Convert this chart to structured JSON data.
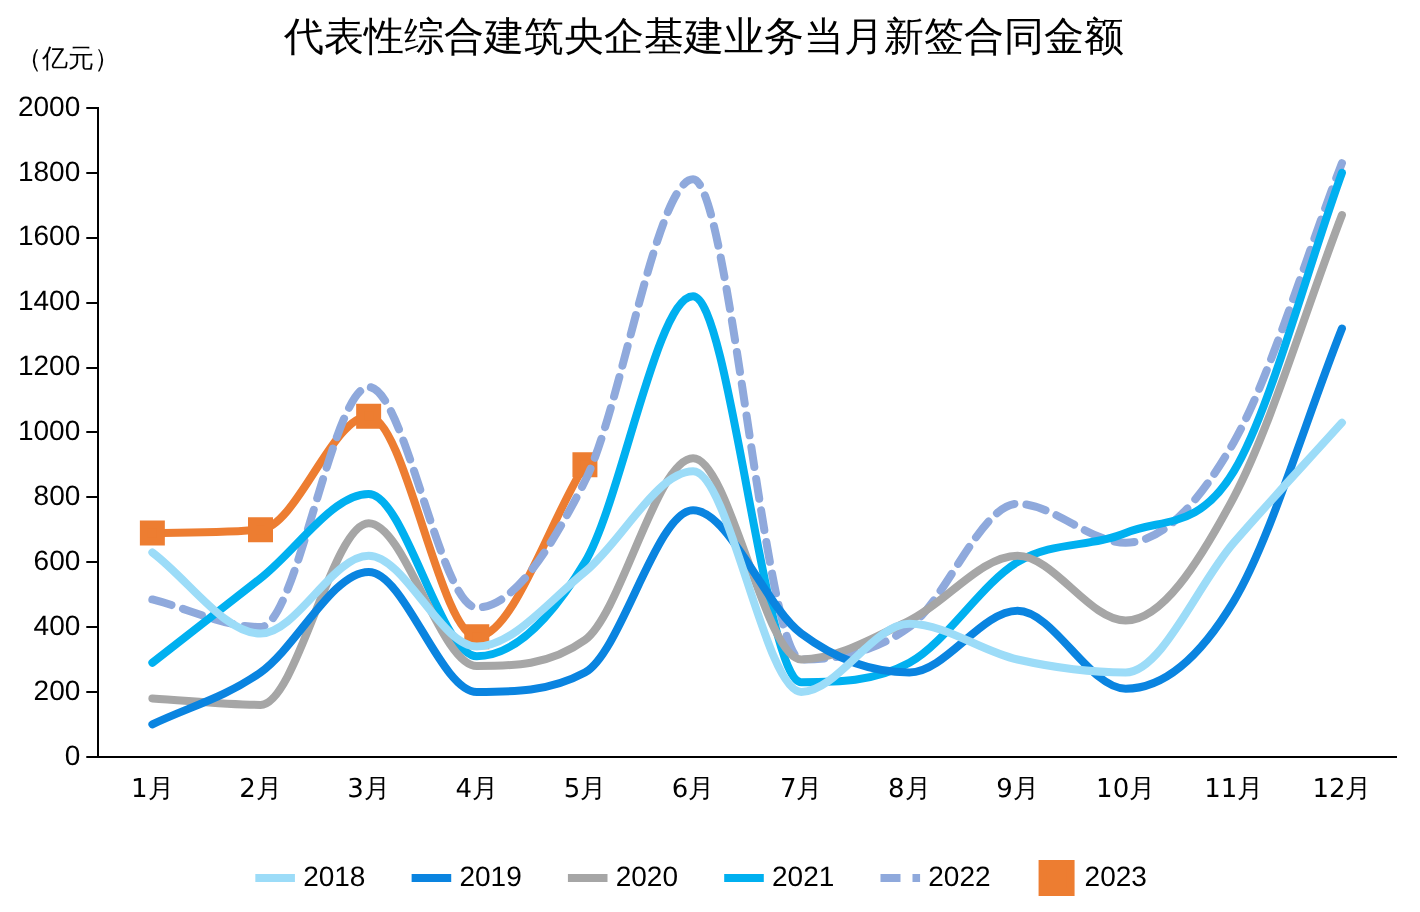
{
  "chart_data": {
    "type": "line",
    "title": "代表性综合建筑央企基建业务当月新签合同金额",
    "ylabel": "（亿元）",
    "categories": [
      "1月",
      "2月",
      "3月",
      "4月",
      "5月",
      "6月",
      "7月",
      "8月",
      "9月",
      "10月",
      "11月",
      "12月"
    ],
    "ylim": [
      0,
      2000
    ],
    "yticks": [
      0,
      200,
      400,
      600,
      800,
      1000,
      1200,
      1400,
      1600,
      1800,
      2000
    ],
    "grid": false,
    "legend": "bottom",
    "series": [
      {
        "name": "2018",
        "color": "#9cdcf8",
        "line_style": "solid",
        "marker": "none",
        "values": [
          630,
          380,
          620,
          340,
          570,
          880,
          200,
          410,
          300,
          260,
          660,
          1030
        ]
      },
      {
        "name": "2019",
        "color": "#0a84e0",
        "line_style": "solid",
        "marker": "none",
        "values": [
          100,
          260,
          570,
          200,
          260,
          760,
          380,
          260,
          450,
          210,
          480,
          1320
        ]
      },
      {
        "name": "2020",
        "color": "#a6a6a6",
        "line_style": "solid",
        "marker": "none",
        "values": [
          180,
          160,
          720,
          280,
          360,
          920,
          300,
          420,
          620,
          420,
          800,
          1670
        ]
      },
      {
        "name": "2021",
        "color": "#00b0f0",
        "line_style": "solid",
        "marker": "none",
        "values": [
          290,
          550,
          810,
          310,
          600,
          1420,
          230,
          290,
          600,
          690,
          880,
          1800
        ]
      },
      {
        "name": "2022",
        "color": "#8fa9dc",
        "line_style": "dashed",
        "marker": "none",
        "values": [
          485,
          400,
          1140,
          460,
          850,
          1780,
          300,
          400,
          780,
          660,
          970,
          1830
        ]
      },
      {
        "name": "2023",
        "color": "#ed7d31",
        "line_style": "solid",
        "marker": "square",
        "values": [
          690,
          700,
          1050,
          370,
          900,
          null,
          null,
          null,
          null,
          null,
          null,
          null
        ]
      }
    ]
  }
}
